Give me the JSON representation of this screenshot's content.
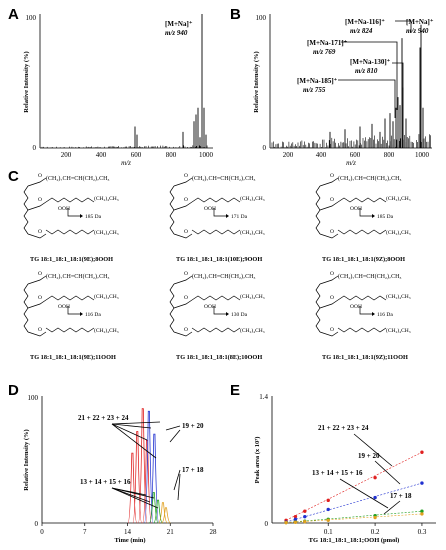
{
  "panels": {
    "A": {
      "letter": "A",
      "ylabel": "Relative Intensity (%)",
      "xlabel": "m/z",
      "y_top": "100",
      "y_bottom": "0",
      "x_ticks": [
        "200",
        "400",
        "600",
        "800",
        "1000"
      ],
      "annotation": {
        "ion": "[M+Na]⁺",
        "mz": "m/z 940"
      }
    },
    "B": {
      "letter": "B",
      "ylabel": "Relative Intensity (%)",
      "xlabel": "m/z",
      "y_top": "100",
      "y_bottom": "0",
      "x_ticks": [
        "200",
        "400",
        "600",
        "800",
        "1000"
      ],
      "annotations": [
        {
          "ion": "[M+Na-116]⁺",
          "mz": "m/z 824"
        },
        {
          "ion": "[M+Na]⁺",
          "mz": "m/z 940"
        },
        {
          "ion": "[M+Na-171]⁺",
          "mz": "m/z 769"
        },
        {
          "ion": "[M+Na-130]⁺",
          "mz": "m/z 810"
        },
        {
          "ion": "[M+Na-185]⁺",
          "mz": "m/z 755"
        }
      ]
    },
    "C": {
      "letter": "C",
      "chain_top": "(CH₂)₇CH=CH(CH₂)₇CH₃",
      "chain_tail": "(CH₂)₄CH₃",
      "ooh": "OOH",
      "structures": [
        {
          "name": "TG 18:1_18:1_18:1(9E);8OOH",
          "frag": "185 Da"
        },
        {
          "name": "TG 18:1_18:1_18:1(10E);9OOH",
          "frag": "171 Da"
        },
        {
          "name": "TG 18:1_18:1_18:1(9Z);8OOH",
          "frag": "185 Da"
        },
        {
          "name": "TG 18:1_18:1_18:1(9E);11OOH",
          "frag": "116 Da"
        },
        {
          "name": "TG 18:1_18:1_18:1(8E);10OOH",
          "frag": "130 Da"
        },
        {
          "name": "TG 18:1_18:1_18:1(9Z);11OOH",
          "frag": "116 Da"
        }
      ]
    },
    "D": {
      "letter": "D",
      "labels": [
        "21 + 22 + 23 + 24",
        "19 + 20",
        "17 + 18",
        "13 + 14 + 15 + 16"
      ]
    },
    "E": {
      "letter": "E",
      "labels": [
        "21 + 22 + 23 + 24",
        "19 + 20",
        "13 + 14 + 15 + 16",
        "17 + 18"
      ]
    }
  },
  "chart_data": [
    {
      "type": "line",
      "panel": "D",
      "xlabel": "Time (min)",
      "ylabel": "Relative Intensity (%)",
      "x_ticks": [
        0,
        7,
        14,
        21,
        28
      ],
      "y_ticks": [
        0,
        100
      ],
      "xlim": [
        0,
        28
      ],
      "ylim": [
        0,
        100
      ],
      "series": [
        {
          "color": "#e02020",
          "peaks": [
            [
              14.8,
              55
            ],
            [
              15.6,
              72
            ],
            [
              16.5,
              90
            ],
            [
              17.2,
              65
            ]
          ]
        },
        {
          "color": "#2030d0",
          "peaks": [
            [
              17.5,
              88
            ],
            [
              18.4,
              70
            ]
          ]
        },
        {
          "color": "#20a020",
          "peaks": [
            [
              18.3,
              24
            ],
            [
              19.0,
              18
            ]
          ]
        },
        {
          "color": "#e0a020",
          "peaks": [
            [
              19.8,
              16
            ],
            [
              20.3,
              12
            ]
          ]
        }
      ]
    },
    {
      "type": "scatter",
      "panel": "E",
      "xlabel": "TG 18:1_18:1_18:1;OOH (pmol)",
      "ylabel": "Peak area (x 10⁷)",
      "x_ticks": [
        0.1,
        0.2,
        0.3
      ],
      "y_ticks": [
        0,
        1.4
      ],
      "xlim": [
        -0.02,
        0.33
      ],
      "ylim": [
        0,
        1.4
      ],
      "series": [
        {
          "color": "#e02020",
          "points": [
            [
              0.01,
              0.03
            ],
            [
              0.03,
              0.07
            ],
            [
              0.05,
              0.13
            ],
            [
              0.1,
              0.25
            ],
            [
              0.2,
              0.5
            ],
            [
              0.3,
              0.78
            ]
          ]
        },
        {
          "color": "#2030d0",
          "points": [
            [
              0.01,
              0.01
            ],
            [
              0.03,
              0.04
            ],
            [
              0.05,
              0.07
            ],
            [
              0.1,
              0.15
            ],
            [
              0.2,
              0.28
            ],
            [
              0.3,
              0.44
            ]
          ]
        },
        {
          "color": "#20a020",
          "points": [
            [
              0.01,
              0.005
            ],
            [
              0.03,
              0.01
            ],
            [
              0.05,
              0.02
            ],
            [
              0.1,
              0.04
            ],
            [
              0.2,
              0.08
            ],
            [
              0.3,
              0.13
            ]
          ]
        },
        {
          "color": "#e0a020",
          "points": [
            [
              0.01,
              0.004
            ],
            [
              0.03,
              0.008
            ],
            [
              0.05,
              0.015
            ],
            [
              0.1,
              0.03
            ],
            [
              0.2,
              0.06
            ],
            [
              0.3,
              0.1
            ]
          ]
        }
      ]
    }
  ]
}
